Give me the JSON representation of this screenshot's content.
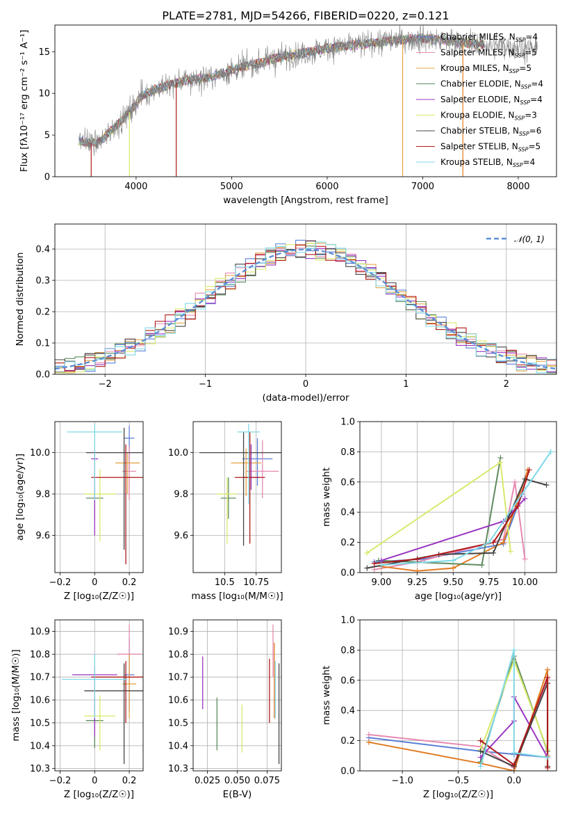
{
  "figure_title": "PLATE=2781, MJD=54266, FIBERID=0220, z=0.121",
  "colors": {
    "Chabrier MILES": "#5b7fd6",
    "Salpeter MILES": "#e58ab0",
    "Kroupa MILES": "#e5a74a",
    "Chabrier ELODIE": "#5e8a5e",
    "Salpeter ELODIE": "#9a35c0",
    "Kroupa ELODIE": "#d9e96a",
    "Chabrier STELIB": "#444444",
    "Salpeter STELIB": "#b01818",
    "Kroupa STELIB": "#7fd8e6",
    "orange": "#e07b22",
    "grid": "#b0b0b0",
    "normal": "#5b8fd6"
  },
  "chart_data": [
    {
      "id": "spectrum",
      "type": "line",
      "title": "PLATE=2781, MJD=54266, FIBERID=0220, z=0.121",
      "xlabel": "wavelength [Angstrom, rest frame]",
      "ylabel": "Flux [fλ10⁻¹⁷ erg cm⁻² s⁻¹ A⁻¹]",
      "xlim": [
        3150,
        8400
      ],
      "ylim": [
        0,
        18.2
      ],
      "xticks": [
        4000,
        5000,
        6000,
        7000,
        8000
      ],
      "yticks": [
        0,
        5,
        10,
        15
      ],
      "grid": false,
      "legend_placement": "top-right",
      "series": [
        {
          "name": "Chabrier MILES, N_SSP=4"
        },
        {
          "name": "Salpeter MILES, N_SSP=5"
        },
        {
          "name": "Kroupa MILES, N_SSP=5"
        },
        {
          "name": "Chabrier ELODIE, N_SSP=4"
        },
        {
          "name": "Salpeter ELODIE, N_SSP=4"
        },
        {
          "name": "Kroupa ELODIE, N_SSP=3"
        },
        {
          "name": "Chabrier STELIB, N_SSP=6"
        },
        {
          "name": "Salpeter STELIB, N_SSP=5"
        },
        {
          "name": "Kroupa STELIB, N_SSP=4"
        }
      ],
      "continuum": [
        [
          3400,
          4.3
        ],
        [
          3600,
          4.0
        ],
        [
          3800,
          6.2
        ],
        [
          3950,
          8.0
        ],
        [
          4050,
          9.6
        ],
        [
          4200,
          10.5
        ],
        [
          4500,
          11.5
        ],
        [
          4800,
          12.0
        ],
        [
          5000,
          12.8
        ],
        [
          5500,
          14.3
        ],
        [
          6000,
          15.4
        ],
        [
          6500,
          16.1
        ],
        [
          7000,
          16.6
        ],
        [
          7500,
          16.0
        ],
        [
          8000,
          15.6
        ],
        [
          8200,
          15.2
        ]
      ],
      "data_end": 8200,
      "model_end": 7650,
      "drops": [
        {
          "x": 3530,
          "series": "Salpeter STELIB"
        },
        {
          "x": 3930,
          "series": "Kroupa ELODIE"
        },
        {
          "x": 4420,
          "series": "Salpeter STELIB"
        },
        {
          "x": 6790,
          "series": "Kroupa MILES"
        },
        {
          "x": 7420,
          "series": "orange"
        }
      ]
    },
    {
      "id": "residuals",
      "type": "histogram",
      "xlabel": "(data-model)/error",
      "ylabel": "Normed distribution",
      "xlim": [
        -2.5,
        2.5
      ],
      "ylim": [
        0,
        0.48
      ],
      "xticks": [
        -2,
        -1,
        0,
        1,
        2
      ],
      "yticks": [
        0.0,
        0.1,
        0.2,
        0.3,
        0.4
      ],
      "grid": true,
      "legend_placement": "top-right",
      "normal_label": "𝒩(0, 1)",
      "bin_width": 0.1,
      "series_colors": [
        "Chabrier MILES",
        "Salpeter MILES",
        "Kroupa MILES",
        "Chabrier ELODIE",
        "Salpeter ELODIE",
        "Kroupa ELODIE",
        "Chabrier STELIB",
        "Salpeter STELIB",
        "Kroupa STELIB"
      ]
    },
    {
      "id": "age-vs-Z",
      "type": "scatter",
      "xlabel": "Z [log₁₀(Z/Z☉)]",
      "ylabel": "age  [log₁₀(age/yr)]",
      "xlim": [
        -0.23,
        0.28
      ],
      "ylim": [
        9.42,
        10.15
      ],
      "xticks": [
        -0.2,
        0.0,
        0.2
      ],
      "yticks": [
        9.6,
        9.8,
        10.0
      ],
      "grid": true,
      "points": [
        {
          "series": "Chabrier MILES",
          "x": 0.2,
          "y": 10.07,
          "xerr": 0.03,
          "yerr": [
            0.15,
            0.06
          ]
        },
        {
          "series": "Salpeter MILES",
          "x": 0.2,
          "y": 9.91,
          "xerr": 0.04,
          "yerr": [
            0.14,
            0.12
          ]
        },
        {
          "series": "Kroupa MILES",
          "x": 0.19,
          "y": 9.95,
          "xerr": 0.07,
          "yerr": [
            0.15,
            0.05
          ]
        },
        {
          "series": "Chabrier ELODIE",
          "x": 0.0,
          "y": 9.78,
          "xerr": 0.05,
          "yerr": [
            0.1,
            0.06
          ]
        },
        {
          "series": "Salpeter ELODIE",
          "x": 0.0,
          "y": 9.97,
          "xerr": 0.02,
          "yerr": [
            0.37,
            0.04
          ]
        },
        {
          "series": "Kroupa ELODIE",
          "x": 0.03,
          "y": 9.8,
          "xerr": 0.09,
          "yerr": [
            0.23,
            0.12
          ]
        },
        {
          "series": "Chabrier STELIB",
          "x": 0.17,
          "y": 10.0,
          "xerr": 0.22,
          "yerr": [
            0.47,
            0.12
          ]
        },
        {
          "series": "Salpeter STELIB",
          "x": 0.18,
          "y": 9.88,
          "xerr": 0.2,
          "yerr": [
            0.42,
            0.16
          ]
        },
        {
          "series": "Kroupa STELIB",
          "x": 0.0,
          "y": 10.1,
          "xerr": 0.16,
          "yerr": [
            0.33,
            0.04
          ]
        }
      ]
    },
    {
      "id": "age-vs-mass",
      "type": "scatter",
      "xlabel": "mass [log₁₀(M/M☉)]",
      "ylabel": "",
      "xlim": [
        10.25,
        10.95
      ],
      "ylim": [
        9.42,
        10.15
      ],
      "xticks": [
        10.5,
        10.75
      ],
      "yticks": [
        9.6,
        9.8,
        10.0
      ],
      "grid": true,
      "points": [
        {
          "series": "Chabrier MILES",
          "x": 10.76,
          "y": 9.97,
          "xerr": 0.12,
          "yerr": [
            0.13,
            0.1
          ]
        },
        {
          "series": "Salpeter MILES",
          "x": 10.8,
          "y": 9.91,
          "xerr": 0.13,
          "yerr": [
            0.13,
            0.15
          ]
        },
        {
          "series": "Kroupa MILES",
          "x": 10.67,
          "y": 9.95,
          "xerr": 0.12,
          "yerr": [
            0.16,
            0.07
          ]
        },
        {
          "series": "Chabrier ELODIE",
          "x": 10.53,
          "y": 9.78,
          "xerr": 0.06,
          "yerr": [
            0.1,
            0.1
          ]
        },
        {
          "series": "Salpeter ELODIE",
          "x": 10.71,
          "y": 9.88,
          "xerr": 0.07,
          "yerr": [
            0.06,
            0.16
          ]
        },
        {
          "series": "Kroupa ELODIE",
          "x": 10.52,
          "y": 9.8,
          "xerr": 0.08,
          "yerr": [
            0.24,
            0.08
          ]
        },
        {
          "series": "Chabrier STELIB",
          "x": 10.65,
          "y": 10.0,
          "xerr": 0.35,
          "yerr": [
            0.45,
            0.1
          ]
        },
        {
          "series": "Salpeter STELIB",
          "x": 10.7,
          "y": 9.88,
          "xerr": 0.12,
          "yerr": [
            0.32,
            0.22
          ]
        },
        {
          "series": "Kroupa STELIB",
          "x": 10.69,
          "y": 10.1,
          "xerr": 0.09,
          "yerr": [
            0.35,
            0.04
          ]
        }
      ]
    },
    {
      "id": "weight-vs-age",
      "type": "line",
      "xlabel": "age  [log₁₀(age/yr)]",
      "ylabel": "mass weight",
      "xlim": [
        8.85,
        10.22
      ],
      "ylim": [
        0,
        1.0
      ],
      "xticks": [
        9.0,
        9.25,
        9.5,
        9.75,
        10.0
      ],
      "yticks": [
        0.0,
        0.2,
        0.4,
        0.6,
        0.8,
        1.0
      ],
      "grid": true,
      "series": [
        {
          "color": "Chabrier MILES",
          "x": [
            8.95,
            9.3,
            9.85,
            9.98
          ],
          "y": [
            0.07,
            0.09,
            0.19,
            0.52
          ]
        },
        {
          "color": "Salpeter MILES",
          "x": [
            8.95,
            9.25,
            9.85,
            9.93,
            10.0
          ],
          "y": [
            0.02,
            0.07,
            0.22,
            0.6,
            0.09
          ]
        },
        {
          "color": "orange",
          "x": [
            9.0,
            9.25,
            9.5,
            9.85,
            10.02
          ],
          "y": [
            0.04,
            0.01,
            0.03,
            0.2,
            0.68
          ]
        },
        {
          "color": "Chabrier ELODIE",
          "x": [
            8.98,
            9.7,
            9.83
          ],
          "y": [
            0.08,
            0.05,
            0.76
          ]
        },
        {
          "color": "Salpeter ELODIE",
          "x": [
            9.0,
            9.85,
            10.0
          ],
          "y": [
            0.08,
            0.34,
            0.49
          ]
        },
        {
          "color": "Kroupa ELODIE",
          "x": [
            8.9,
            9.83,
            9.9
          ],
          "y": [
            0.13,
            0.73,
            0.14
          ]
        },
        {
          "color": "Chabrier STELIB",
          "x": [
            8.9,
            9.4,
            9.78,
            10.0,
            10.15
          ],
          "y": [
            0.03,
            0.12,
            0.13,
            0.62,
            0.58
          ]
        },
        {
          "color": "Salpeter STELIB",
          "x": [
            8.95,
            9.25,
            9.78,
            9.95,
            10.03
          ],
          "y": [
            0.06,
            0.09,
            0.2,
            0.44,
            0.68
          ]
        },
        {
          "color": "Kroupa STELIB",
          "x": [
            9.0,
            9.5,
            9.75,
            10.18
          ],
          "y": [
            0.05,
            0.08,
            0.2,
            0.8
          ]
        }
      ]
    },
    {
      "id": "mass-vs-Z",
      "type": "scatter",
      "xlabel": "Z [log₁₀(Z/Z☉)]",
      "ylabel": "mass [log₁₀(M/M☉)]",
      "xlim": [
        -0.23,
        0.28
      ],
      "ylim": [
        10.29,
        10.95
      ],
      "xticks": [
        -0.2,
        0.0,
        0.2
      ],
      "yticks": [
        10.3,
        10.4,
        10.5,
        10.6,
        10.7,
        10.8,
        10.9
      ],
      "grid": true,
      "points": [
        {
          "series": "Chabrier MILES",
          "x": 0.2,
          "y": 10.71,
          "xerr": 0.03,
          "yerr": [
            0.16,
            0.16
          ]
        },
        {
          "series": "Salpeter MILES",
          "x": 0.2,
          "y": 10.8,
          "xerr": 0.07,
          "yerr": [
            0.25,
            0.13
          ]
        },
        {
          "series": "Kroupa MILES",
          "x": 0.2,
          "y": 10.67,
          "xerr": 0.04,
          "yerr": [
            0.15,
            0.13
          ]
        },
        {
          "series": "Chabrier ELODIE",
          "x": 0.0,
          "y": 10.51,
          "xerr": 0.05,
          "yerr": [
            0.12,
            0.1
          ]
        },
        {
          "series": "Salpeter ELODIE",
          "x": 0.0,
          "y": 10.71,
          "xerr": 0.13,
          "yerr": [
            0.27,
            0.04
          ]
        },
        {
          "series": "Kroupa ELODIE",
          "x": 0.03,
          "y": 10.53,
          "xerr": 0.09,
          "yerr": [
            0.15,
            0.09
          ]
        },
        {
          "series": "Chabrier STELIB",
          "x": 0.17,
          "y": 10.64,
          "xerr": 0.23,
          "yerr": [
            0.32,
            0.12
          ]
        },
        {
          "series": "Salpeter STELIB",
          "x": 0.18,
          "y": 10.7,
          "xerr": 0.2,
          "yerr": [
            0.2,
            0.07
          ]
        },
        {
          "series": "Kroupa STELIB",
          "x": 0.0,
          "y": 10.69,
          "xerr": 0.19,
          "yerr": [
            0.17,
            0.11
          ]
        }
      ]
    },
    {
      "id": "mass-vs-ebv",
      "type": "scatter",
      "xlabel": "E(B-V)",
      "ylabel": "",
      "xlim": [
        0.013,
        0.087
      ],
      "ylim": [
        10.29,
        10.95
      ],
      "xticks": [
        0.025,
        0.05,
        0.075
      ],
      "yticks": [
        10.3,
        10.4,
        10.5,
        10.6,
        10.7,
        10.8,
        10.9
      ],
      "grid": true,
      "points": [
        {
          "series": "Salpeter ELODIE",
          "x": 0.021,
          "y": 10.68,
          "yerr": [
            0.12,
            0.11
          ]
        },
        {
          "series": "Chabrier ELODIE",
          "x": 0.033,
          "y": 10.5,
          "yerr": [
            0.12,
            0.11
          ]
        },
        {
          "series": "Kroupa ELODIE",
          "x": 0.054,
          "y": 10.46,
          "yerr": [
            0.09,
            0.12
          ]
        },
        {
          "series": "Salpeter STELIB",
          "x": 0.077,
          "y": 10.6,
          "yerr": [
            0.1,
            0.18
          ]
        },
        {
          "series": "Salpeter MILES",
          "x": 0.08,
          "y": 10.8,
          "yerr": [
            0.1,
            0.13
          ]
        },
        {
          "series": "orange",
          "x": 0.081,
          "y": 10.72,
          "yerr": [
            0.2,
            0.13
          ]
        },
        {
          "series": "Kroupa STELIB",
          "x": 0.082,
          "y": 10.7,
          "yerr": [
            0.18,
            0.07
          ]
        },
        {
          "series": "Chabrier STELIB",
          "x": 0.085,
          "y": 10.54,
          "yerr": [
            0.22,
            0.22
          ]
        }
      ]
    },
    {
      "id": "weight-vs-Z",
      "type": "line",
      "xlabel": "Z [log₁₀(Z/Z☉)]",
      "ylabel": "mass weight",
      "xlim": [
        -1.38,
        0.38
      ],
      "ylim": [
        0,
        1.0
      ],
      "xticks": [
        -1.0,
        -0.5,
        0.0
      ],
      "yticks": [
        0.0,
        0.2,
        0.4,
        0.6,
        0.8,
        1.0
      ],
      "grid": true,
      "series": [
        {
          "color": "Chabrier MILES",
          "x": [
            -1.3,
            -0.3,
            0.0,
            0.3
          ],
          "y": [
            0.22,
            0.13,
            0.11,
            0.09
          ]
        },
        {
          "color": "Salpeter MILES",
          "x": [
            -1.3,
            -0.3,
            0.0,
            0.3
          ],
          "y": [
            0.24,
            0.16,
            0.02,
            0.61
          ]
        },
        {
          "color": "orange",
          "x": [
            -1.3,
            -0.3,
            0.0,
            0.3,
            0.3
          ],
          "y": [
            0.19,
            0.05,
            0.0,
            0.67,
            0.1
          ]
        },
        {
          "color": "Chabrier ELODIE",
          "x": [
            -0.3,
            0.0,
            0.3
          ],
          "y": [
            0.06,
            0.76,
            0.13
          ]
        },
        {
          "color": "Salpeter ELODIE",
          "x": [
            -0.3,
            0.0,
            0.0,
            0.3
          ],
          "y": [
            0.09,
            0.33,
            0.49,
            0.09
          ]
        },
        {
          "color": "Kroupa ELODIE",
          "x": [
            -0.3,
            0.0,
            0.3
          ],
          "y": [
            0.14,
            0.73,
            0.14
          ]
        },
        {
          "color": "Chabrier STELIB",
          "x": [
            -0.3,
            0.0,
            0.3,
            0.3
          ],
          "y": [
            0.13,
            0.03,
            0.58,
            0.03
          ]
        },
        {
          "color": "Salpeter STELIB",
          "x": [
            -0.3,
            0.0,
            0.3,
            0.3
          ],
          "y": [
            0.2,
            0.04,
            0.62,
            0.02
          ]
        },
        {
          "color": "Kroupa STELIB",
          "x": [
            -0.3,
            0.0,
            0.0,
            0.3
          ],
          "y": [
            0.03,
            0.8,
            0.12,
            0.09
          ]
        }
      ]
    }
  ]
}
